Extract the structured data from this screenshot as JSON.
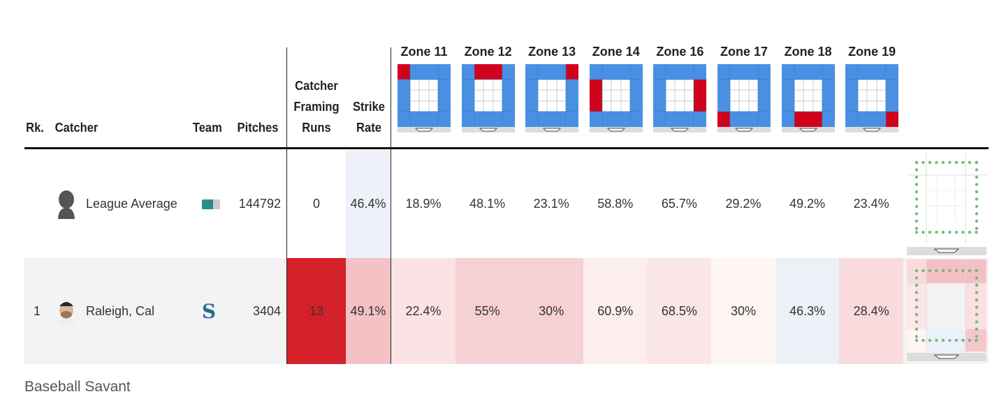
{
  "headers": {
    "rank": "Rk.",
    "catcher": "Catcher",
    "team": "Team",
    "pitches": "Pitches",
    "runs_line1": "Catcher",
    "runs_line2": "Framing",
    "runs_line3": "Runs",
    "strike_line1": "Strike",
    "strike_line2": "Rate"
  },
  "zones": [
    {
      "label": "Zone 11",
      "highlight": "top-left"
    },
    {
      "label": "Zone 12",
      "highlight": "top-middle"
    },
    {
      "label": "Zone 13",
      "highlight": "top-right"
    },
    {
      "label": "Zone 14",
      "highlight": "middle-left"
    },
    {
      "label": "Zone 16",
      "highlight": "middle-right"
    },
    {
      "label": "Zone 17",
      "highlight": "bottom-left"
    },
    {
      "label": "Zone 18",
      "highlight": "bottom-middle"
    },
    {
      "label": "Zone 19",
      "highlight": "bottom-right"
    }
  ],
  "colors": {
    "zone_blue": "#4a90e2",
    "zone_red": "#d0021b",
    "runs_red": "#d42129",
    "dots_green": "#7bb77b"
  },
  "rows": [
    {
      "rank": "",
      "name": "League Average",
      "avatar": "silhouette-icon",
      "team_logo": "mlb-logo-icon",
      "pitches": "144792",
      "runs": "0",
      "strike_rate": "46.4%",
      "strike_bg": "#eef1f8",
      "runs_bg": "#ffffff",
      "zone_rates": [
        "18.9%",
        "48.1%",
        "23.1%",
        "58.8%",
        "65.7%",
        "29.2%",
        "49.2%",
        "23.4%"
      ],
      "zone_bgs": [
        "#fff",
        "#fff",
        "#fff",
        "#fff",
        "#fff",
        "#fff",
        "#fff",
        "#fff"
      ]
    },
    {
      "rank": "1",
      "name": "Raleigh, Cal",
      "avatar": "player-headshot-icon",
      "team_logo": "mariners-logo-icon",
      "pitches": "3404",
      "runs": "13",
      "strike_rate": "49.1%",
      "strike_bg": "#f4c1c4",
      "runs_bg": "#d42129",
      "zone_rates": [
        "22.4%",
        "55%",
        "30%",
        "60.9%",
        "68.5%",
        "30%",
        "46.3%",
        "28.4%"
      ],
      "zone_bgs": [
        "#fbe3e5",
        "#f6d1d4",
        "#f6d1d4",
        "#fcedee",
        "#fae6e8",
        "#fff5f5",
        "#edf1f7",
        "#f9dadd"
      ]
    }
  ],
  "footer": "Baseball Savant"
}
